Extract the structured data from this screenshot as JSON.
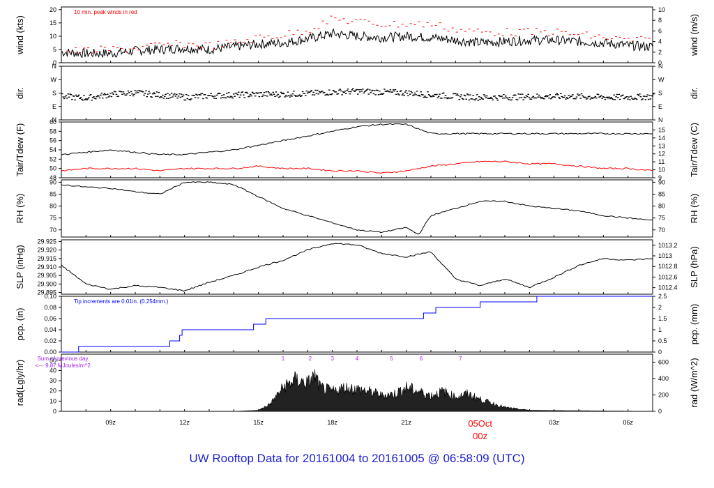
{
  "footer": {
    "title": "UW Rooftop Data for 20161004  to  20161005 @ 06:58:09  (UTC)"
  },
  "colors": {
    "axis": "#000000",
    "wind_peak": "#ff0000",
    "tdew": "#ff0000",
    "pcp": "#0000ff",
    "footer": "#1f1fd0",
    "sum_note": "#a020f0",
    "date_label": "#ff0000"
  },
  "chart_data": {
    "type": "line",
    "time_axis": {
      "tick_labels": [
        "09z",
        "12z",
        "15z",
        "18z",
        "21z",
        "00z",
        "03z",
        "06z"
      ],
      "date_label": "05Oct",
      "date_time_label": "00z",
      "start_hour": 7,
      "end_hour": 31
    },
    "panels": [
      {
        "id": "wind",
        "left_label": "wind (kts)",
        "right_label": "wind (m/s)",
        "left_ticks": [
          "0",
          "5",
          "10",
          "15",
          "20"
        ],
        "right_ticks": [
          "0",
          "2",
          "4",
          "6",
          "8",
          "10"
        ],
        "ylim": [
          0,
          21
        ],
        "annotation": "10 min. peak winds in red",
        "series": [
          {
            "style": "line",
            "hours": [
              7,
              8,
              9,
              10,
              11,
              12,
              13,
              14,
              15,
              16,
              17,
              18,
              19,
              20,
              21,
              22,
              23,
              24,
              25,
              26,
              27,
              28,
              29,
              30,
              31
            ],
            "values": [
              4,
              3.5,
              3.5,
              4.5,
              5,
              5.5,
              5,
              6,
              7,
              7.5,
              9,
              11,
              10,
              9.5,
              10,
              9.5,
              8.5,
              7.5,
              8,
              8.5,
              8.5,
              8,
              7.5,
              6.5,
              6
            ]
          },
          {
            "style": "peaks",
            "hours": [
              7,
              8,
              9,
              10,
              11,
              12,
              13,
              14,
              15,
              16,
              17,
              18,
              19,
              20,
              21,
              22,
              23,
              24,
              25,
              26,
              27,
              28,
              29,
              30,
              31
            ],
            "values": [
              6,
              6,
              6.5,
              7,
              8,
              8.5,
              8,
              9,
              11,
              12,
              14,
              18,
              17,
              16,
              16,
              16,
              14,
              13,
              13,
              13,
              13,
              12,
              11,
              10,
              10
            ]
          }
        ]
      },
      {
        "id": "dir",
        "left_label": "dir.",
        "right_label": "dir.",
        "left_ticks": [
          "N",
          "E",
          "S",
          "W",
          "N"
        ],
        "right_ticks": [
          "N",
          "E",
          "S",
          "W",
          "N"
        ],
        "ylim": [
          0,
          360
        ],
        "series": [
          {
            "style": "dots",
            "hours": [
              7,
              8,
              9,
              10,
              11,
              12,
              13,
              14,
              15,
              16,
              17,
              18,
              19,
              20,
              21,
              22,
              23,
              24,
              25,
              26,
              27,
              28,
              29,
              30,
              31
            ],
            "values": [
              160,
              150,
              175,
              185,
              170,
              155,
              165,
              170,
              175,
              175,
              180,
              190,
              195,
              190,
              185,
              170,
              160,
              155,
              155,
              160,
              160,
              160,
              155,
              155,
              160
            ]
          }
        ]
      },
      {
        "id": "temp",
        "left_label": "Tair/Tdew (F)",
        "right_label": "Tair/Tdew (C)",
        "left_ticks": [
          "48",
          "50",
          "52",
          "54",
          "56",
          "58",
          "60"
        ],
        "right_ticks": [
          "9",
          "10",
          "11",
          "12",
          "13",
          "14",
          "15"
        ],
        "ylim": [
          48,
          60
        ],
        "series": [
          {
            "name": "Tair",
            "style": "line",
            "hours": [
              7,
              8,
              9,
              10,
              11,
              12,
              13,
              14,
              15,
              16,
              17,
              18,
              19,
              20,
              21,
              22,
              23,
              24,
              25,
              26,
              27,
              28,
              29,
              30,
              31
            ],
            "values": [
              53,
              53.5,
              54,
              53.5,
              53,
              53,
              53.5,
              54,
              55,
              56,
              57,
              58,
              59,
              59.5,
              59.5,
              57.5,
              57.5,
              57.5,
              57.5,
              57.5,
              57.5,
              57.5,
              57.5,
              57.5,
              57.5
            ]
          },
          {
            "name": "Tdew",
            "style": "line",
            "hours": [
              7,
              8,
              9,
              10,
              11,
              12,
              13,
              14,
              15,
              16,
              17,
              18,
              19,
              20,
              21,
              22,
              23,
              24,
              25,
              26,
              27,
              28,
              29,
              30,
              31
            ],
            "values": [
              49.5,
              50,
              50,
              50,
              49.5,
              50,
              50,
              50,
              50.5,
              50,
              50,
              49.5,
              49.5,
              49,
              49.5,
              50.5,
              51,
              51.5,
              51.5,
              51,
              51,
              50.5,
              50,
              50,
              49.5
            ]
          }
        ]
      },
      {
        "id": "rh",
        "left_label": "RH (%)",
        "right_label": "RH (%)",
        "left_ticks": [
          "70",
          "75",
          "80",
          "85",
          "90"
        ],
        "right_ticks": [
          "70",
          "75",
          "80",
          "85",
          "90"
        ],
        "ylim": [
          67,
          91
        ],
        "series": [
          {
            "style": "line",
            "hours": [
              7,
              8,
              9,
              10,
              11,
              12,
              13,
              14,
              15,
              16,
              17,
              18,
              19,
              20,
              21,
              21.5,
              22,
              23,
              24,
              25,
              26,
              27,
              28,
              29,
              30,
              31
            ],
            "values": [
              89,
              88,
              87.5,
              86,
              85,
              90,
              90,
              89,
              84,
              79,
              76,
              73,
              70,
              69,
              71,
              68,
              76,
              79,
              82,
              82,
              80,
              79,
              78,
              76,
              75,
              74
            ]
          }
        ]
      },
      {
        "id": "slp",
        "left_label": "SLP (inHg)",
        "right_label": "SLP (hPa)",
        "left_ticks": [
          "29.895",
          "29.900",
          "29.905",
          "29.910",
          "29.915",
          "29.920",
          "29.925"
        ],
        "right_ticks": [
          "1012.4",
          "1012.6",
          "1012.8",
          "1013",
          "1013.2"
        ],
        "ylim": [
          29.894,
          29.926
        ],
        "series": [
          {
            "style": "line",
            "hours": [
              7,
              8,
              9,
              10,
              11,
              12,
              13,
              14,
              15,
              16,
              17,
              18,
              19,
              20,
              21,
              22,
              23,
              24,
              25,
              26,
              27,
              28,
              29,
              30,
              31
            ],
            "values": [
              29.911,
              29.9,
              29.897,
              29.899,
              29.898,
              29.896,
              29.901,
              29.905,
              29.91,
              29.914,
              29.92,
              29.924,
              29.923,
              29.918,
              29.916,
              29.919,
              29.903,
              29.899,
              29.903,
              29.898,
              29.904,
              29.911,
              29.915,
              29.914,
              29.915
            ]
          }
        ]
      },
      {
        "id": "pcp",
        "left_label": "pcp. (in)",
        "right_label": "pcp. (mm)",
        "left_ticks": [
          "0.00",
          "0.02",
          "0.04",
          "0.06",
          "0.08",
          "0.10"
        ],
        "right_ticks": [
          "0",
          "0.5",
          "1",
          "1.5",
          "2",
          "2.5"
        ],
        "ylim": [
          0,
          0.1
        ],
        "annotation": "Tip increments are 0.01in. (0.254mm.)",
        "series": [
          {
            "style": "step",
            "hours": [
              7,
              7.7,
              11.4,
              11.8,
              11.9,
              14.8,
              15.3,
              21.7,
              22.2,
              24,
              26.3,
              31
            ],
            "values": [
              0,
              0.01,
              0.02,
              0.03,
              0.04,
              0.05,
              0.06,
              0.07,
              0.08,
              0.09,
              0.1,
              0.1
            ]
          }
        ]
      },
      {
        "id": "rad",
        "left_label": "rad(Lgly/hr)",
        "right_label": "rad (W/m^2)",
        "left_ticks": [
          "0",
          "10",
          "20",
          "30",
          "40",
          "50"
        ],
        "right_ticks": [
          "0",
          "200",
          "400",
          "600"
        ],
        "ylim": [
          0,
          56
        ],
        "sum_note_line1": "Sum of previous day",
        "sum_note_line2": "<--- 9.87 MJoules/m^2",
        "marker_labels": [
          "1",
          "2",
          "3",
          "4",
          "5",
          "6",
          "7"
        ],
        "marker_hours": [
          16,
          17.1,
          18,
          19,
          20.4,
          21.6,
          23.2
        ],
        "series": [
          {
            "style": "area",
            "hours": [
              7,
              14,
              15,
              15.5,
              16,
              16.5,
              17,
              17.3,
              17.5,
              18,
              18.5,
              19,
              19.5,
              20,
              20.5,
              21,
              21.5,
              22,
              22.5,
              23,
              23.5,
              24,
              24.5,
              25,
              26,
              31
            ],
            "values": [
              0,
              0,
              1,
              10,
              30,
              40,
              35,
              45,
              30,
              25,
              30,
              28,
              25,
              20,
              22,
              30,
              25,
              20,
              25,
              18,
              22,
              15,
              10,
              5,
              1,
              0
            ]
          }
        ]
      }
    ]
  }
}
